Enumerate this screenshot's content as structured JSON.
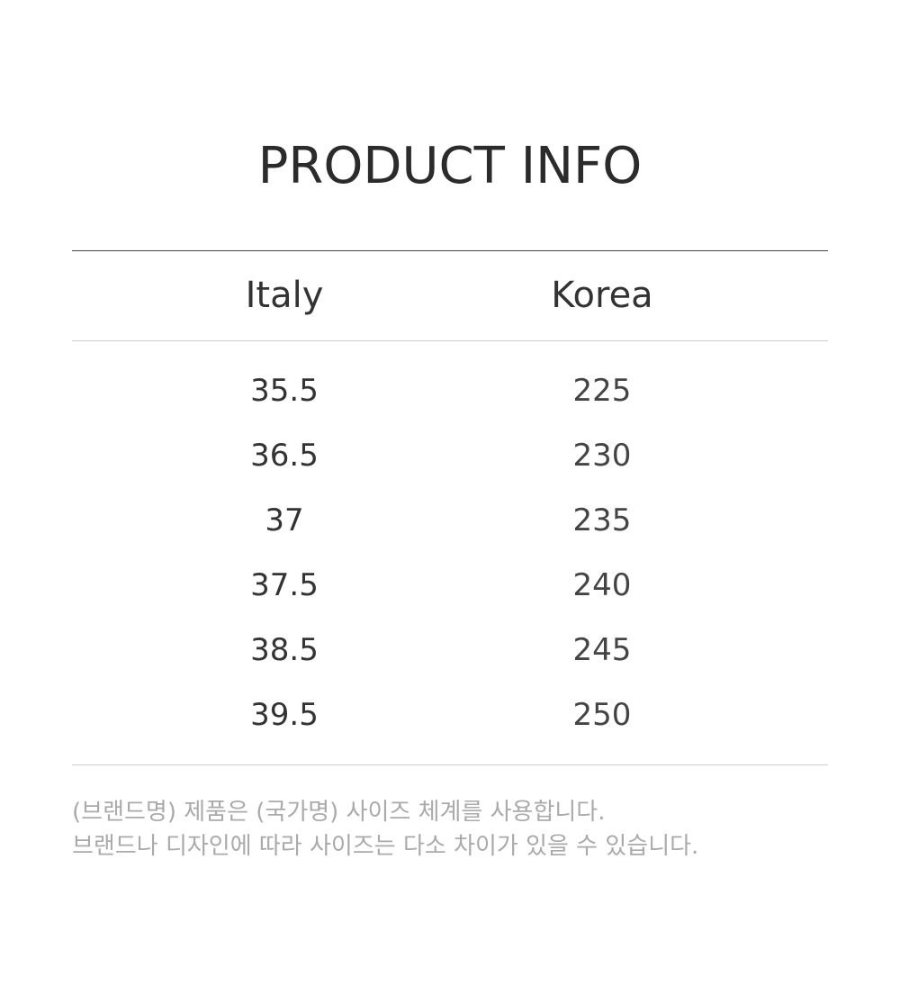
{
  "title": "PRODUCT INFO",
  "table": {
    "headers": [
      "Italy",
      "Korea"
    ],
    "rows": [
      [
        "35.5",
        "225"
      ],
      [
        "36.5",
        "230"
      ],
      [
        "37",
        "235"
      ],
      [
        "37.5",
        "240"
      ],
      [
        "38.5",
        "245"
      ],
      [
        "39.5",
        "250"
      ]
    ]
  },
  "notes": [
    "(브랜드명) 제품은 (국가명) 사이즈 체계를 사용합니다.",
    "브랜드나 디자인에 따라 사이즈는 다소 차이가 있을 수 있습니다."
  ]
}
